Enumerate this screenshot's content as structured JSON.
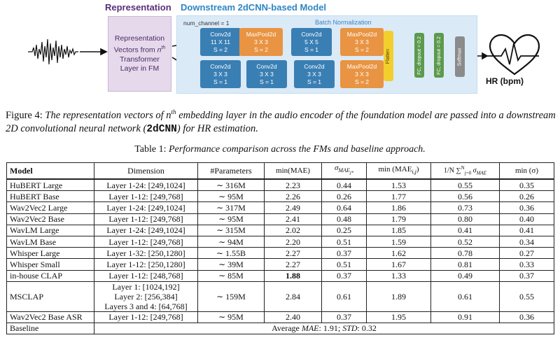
{
  "figure": {
    "representation_title": "Representation",
    "downstream_title": "Downstream 2dCNN-based Model",
    "rep_box_lines": [
      "Representation",
      "Vectors from",
      "n",
      "th",
      "Transformer",
      "Layer in FM"
    ],
    "num_channel": "num_channel = 1",
    "batch_norm": "Batch Normalization",
    "top_row": [
      {
        "name": "Conv2d",
        "k": "11 X 11",
        "s": "S = 2"
      },
      {
        "name": "MaxPool2d",
        "k": "3 X 3",
        "s": "S = 2"
      },
      {
        "name": "Conv2d",
        "k": "5 X 5",
        "s": "S = 1"
      },
      {
        "name": "MaxPool2d",
        "k": "3 X 3",
        "s": "S = 2"
      }
    ],
    "bottom_row": [
      {
        "name": "Conv2d",
        "k": "3 X 3",
        "s": "S = 1"
      },
      {
        "name": "Conv2d",
        "k": "3 X 3",
        "s": "S = 1"
      },
      {
        "name": "Conv2d",
        "k": "3 X 3",
        "s": "S = 1"
      },
      {
        "name": "MaxPool2d",
        "k": "3 X 3",
        "s": "S = 2"
      }
    ],
    "flatten": "Flatten",
    "fc1": "FC, dropout = 0.2",
    "fc2": "FC, dropout = 0.2",
    "softmax": "Softmax",
    "output": "HR (bpm)",
    "colors": {
      "conv": "#3a7fb4",
      "pool": "#e99442",
      "flatten": "#f2cf2d",
      "fc": "#5c9a4d",
      "softmax": "#8b8b8b",
      "rep": "#e6d9ec",
      "downstream": "#dbeaf7"
    }
  },
  "caption": {
    "label": "Figure 4:",
    "part1": "The representation vectors of",
    "n": "n",
    "th": "th",
    "part2": "embedding layer in the audio encoder of the foundation model are passed into a",
    "part3": "downstream 2D convolutional neural network (",
    "model_abbrev": "2dCNN",
    "part4": ") for HR estimation."
  },
  "table": {
    "caption_label": "Table 1:",
    "caption_text": "Performance comparison across the FMs and baseline approach.",
    "headers": {
      "model": "Model",
      "dimension": "Dimension",
      "params": "#Parameters",
      "min_mae": "min(MAE)",
      "sigma": "σ",
      "sigma_sub": "MAE",
      "sigma_subsub": "j*",
      "min_mae_ij": "min (MAE",
      "min_mae_ij_sub": "i,j",
      "min_mae_ij_close": ")",
      "min_mae_ij_under": "i, j",
      "avg_sigma": "1/N ∑",
      "avg_sigma_rest": "σ",
      "avg_sigma_sub": "MAE",
      "avg_sigma_range": "j=0",
      "avg_sigma_top": "N",
      "min_sigma": "min (σ)"
    },
    "rows": [
      {
        "model": "HuBERT Large",
        "dimension": "Layer 1-24: [249,1024]",
        "params": "∼ 316M",
        "min_mae": "2.23",
        "sigma": "0.44",
        "min_mae_ij": "1.53",
        "avg_sigma": "0.55",
        "min_sigma": "0.35"
      },
      {
        "model": "HuBERT Base",
        "dimension": "Layer 1-12: [249,768]",
        "params": "∼ 95M",
        "min_mae": "2.26",
        "sigma": "0.26",
        "min_mae_ij": "1.77",
        "avg_sigma": "0.56",
        "min_sigma": "0.26"
      },
      {
        "model": "Wav2Vec2 Large",
        "dimension": "Layer 1-24: [249,1024]",
        "params": "∼ 317M",
        "min_mae": "2.49",
        "sigma": "0.64",
        "min_mae_ij": "1.86",
        "avg_sigma": "0.73",
        "min_sigma": "0.36"
      },
      {
        "model": "Wav2Vec2 Base",
        "dimension": "Layer 1-12: [249,768]",
        "params": "∼ 95M",
        "min_mae": "2.41",
        "sigma": "0.48",
        "min_mae_ij": "1.79",
        "avg_sigma": "0.80",
        "min_sigma": "0.40"
      },
      {
        "model": "WavLM Large",
        "dimension": "Layer 1-24: [249,1024]",
        "params": "∼ 315M",
        "min_mae": "2.02",
        "sigma": "0.25",
        "min_mae_ij": "1.85",
        "avg_sigma": "0.41",
        "min_sigma": "0.41"
      },
      {
        "model": "WavLM Base",
        "dimension": "Layer 1-12: [249,768]",
        "params": "∼ 94M",
        "min_mae": "2.20",
        "sigma": "0.51",
        "min_mae_ij": "1.59",
        "avg_sigma": "0.52",
        "min_sigma": "0.34"
      },
      {
        "model": "Whisper Large",
        "dimension": "Layer 1-32: [250,1280]",
        "params": "∼ 1.55B",
        "min_mae": "2.27",
        "sigma": "0.37",
        "min_mae_ij": "1.62",
        "avg_sigma": "0.78",
        "min_sigma": "0.27"
      },
      {
        "model": "Whisper Small",
        "dimension": "Layer 1-12: [250,1280]",
        "params": "∼ 39M",
        "min_mae": "2.27",
        "sigma": "0.51",
        "min_mae_ij": "1.67",
        "avg_sigma": "0.81",
        "min_sigma": "0.33"
      },
      {
        "model": "in-house CLAP",
        "dimension": "Layer 1-12: [248,768]",
        "params": "∼ 85M",
        "min_mae": "1.88",
        "sigma": "0.37",
        "min_mae_ij": "1.33",
        "avg_sigma": "0.49",
        "min_sigma": "0.37"
      }
    ],
    "msclap": {
      "model": "MSCLAP",
      "dim1": "Layer 1: [1024,192]",
      "dim2": "Layer 2: [256,384]",
      "dim3": "Layers 3 and 4: [64,768]",
      "params": "∼ 159M",
      "min_mae": "2.84",
      "sigma": "0.61",
      "min_mae_ij": "1.89",
      "avg_sigma": "0.61",
      "min_sigma": "0.55"
    },
    "asr_row": {
      "model": "Wav2Vec2 Base ASR",
      "dimension": "Layer 1-12: [249,768]",
      "params": "∼ 95M",
      "min_mae": "2.40",
      "sigma": "0.37",
      "min_mae_ij": "1.95",
      "avg_sigma": "0.91",
      "min_sigma": "0.36"
    },
    "baseline": {
      "label": "Baseline",
      "avg_prefix": "Average",
      "mae": "MAE",
      "mae_value": ": 1.91;",
      "std": "STD",
      "std_value": ": 0.32"
    }
  }
}
